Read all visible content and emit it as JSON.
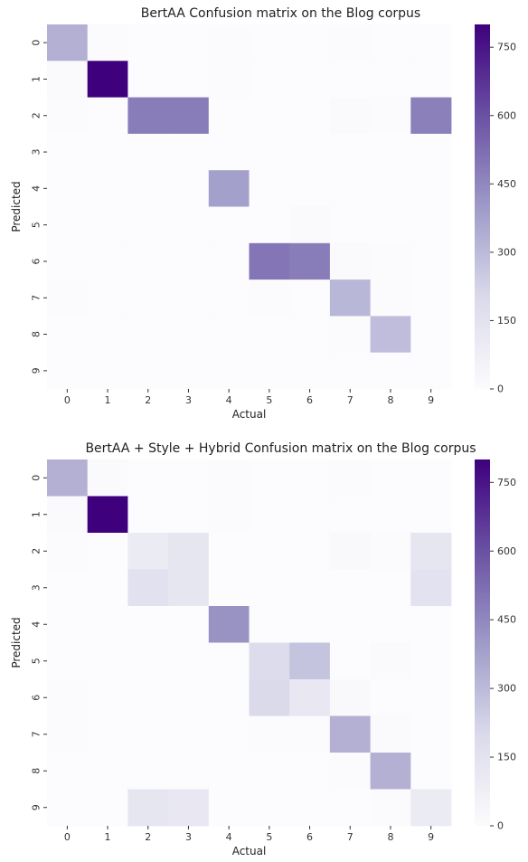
{
  "chart_data": [
    {
      "type": "heatmap",
      "title": "BertAA Confusion matrix on the Blog corpus",
      "xlabel": "Actual",
      "ylabel": "Predicted",
      "x_categories": [
        "0",
        "1",
        "2",
        "3",
        "4",
        "5",
        "6",
        "7",
        "8",
        "9"
      ],
      "y_categories": [
        "0",
        "1",
        "2",
        "3",
        "4",
        "5",
        "6",
        "7",
        "8",
        "9"
      ],
      "vmin": 0,
      "vmax": 800,
      "colorbar_ticks": [
        "0",
        "150",
        "300",
        "450",
        "600",
        "750"
      ],
      "cmap": [
        "#fcfbfd",
        "#dadaeb",
        "#9e9ac8",
        "#6a51a3",
        "#3f007d"
      ],
      "values": [
        [
          330,
          8,
          0,
          0,
          4,
          0,
          0,
          5,
          2,
          0
        ],
        [
          12,
          800,
          0,
          0,
          5,
          0,
          0,
          0,
          0,
          0
        ],
        [
          5,
          0,
          480,
          480,
          0,
          0,
          0,
          10,
          6,
          470
        ],
        [
          0,
          0,
          0,
          0,
          0,
          0,
          0,
          0,
          0,
          0
        ],
        [
          0,
          0,
          0,
          0,
          380,
          0,
          0,
          0,
          0,
          0
        ],
        [
          0,
          0,
          0,
          0,
          0,
          0,
          14,
          0,
          0,
          0
        ],
        [
          0,
          0,
          0,
          0,
          0,
          500,
          480,
          10,
          5,
          0
        ],
        [
          6,
          0,
          0,
          0,
          0,
          4,
          0,
          310,
          5,
          0
        ],
        [
          0,
          0,
          0,
          0,
          0,
          0,
          0,
          5,
          290,
          0
        ],
        [
          0,
          0,
          0,
          0,
          0,
          0,
          0,
          0,
          0,
          0
        ]
      ]
    },
    {
      "type": "heatmap",
      "title": "BertAA + Style + Hybrid Confusion matrix on the Blog corpus",
      "xlabel": "Actual",
      "ylabel": "Predicted",
      "x_categories": [
        "0",
        "1",
        "2",
        "3",
        "4",
        "5",
        "6",
        "7",
        "8",
        "9"
      ],
      "y_categories": [
        "0",
        "1",
        "2",
        "3",
        "4",
        "5",
        "6",
        "7",
        "8",
        "9"
      ],
      "vmin": 0,
      "vmax": 800,
      "colorbar_ticks": [
        "0",
        "150",
        "300",
        "450",
        "600",
        "750"
      ],
      "cmap": [
        "#fcfbfd",
        "#dadaeb",
        "#9e9ac8",
        "#6a51a3",
        "#3f007d"
      ],
      "values": [
        [
          330,
          10,
          0,
          0,
          4,
          0,
          0,
          5,
          2,
          0
        ],
        [
          10,
          800,
          0,
          0,
          5,
          0,
          0,
          0,
          0,
          0
        ],
        [
          8,
          0,
          100,
          130,
          0,
          0,
          0,
          15,
          5,
          130
        ],
        [
          0,
          0,
          160,
          130,
          0,
          0,
          0,
          0,
          0,
          150
        ],
        [
          0,
          0,
          0,
          0,
          420,
          0,
          0,
          0,
          0,
          0
        ],
        [
          0,
          0,
          0,
          0,
          0,
          190,
          270,
          0,
          10,
          0
        ],
        [
          6,
          0,
          0,
          0,
          0,
          200,
          120,
          20,
          0,
          0
        ],
        [
          5,
          0,
          0,
          0,
          0,
          5,
          5,
          330,
          10,
          0
        ],
        [
          0,
          0,
          0,
          0,
          0,
          0,
          0,
          8,
          330,
          0
        ],
        [
          0,
          0,
          130,
          120,
          0,
          0,
          0,
          0,
          8,
          100
        ]
      ]
    }
  ]
}
